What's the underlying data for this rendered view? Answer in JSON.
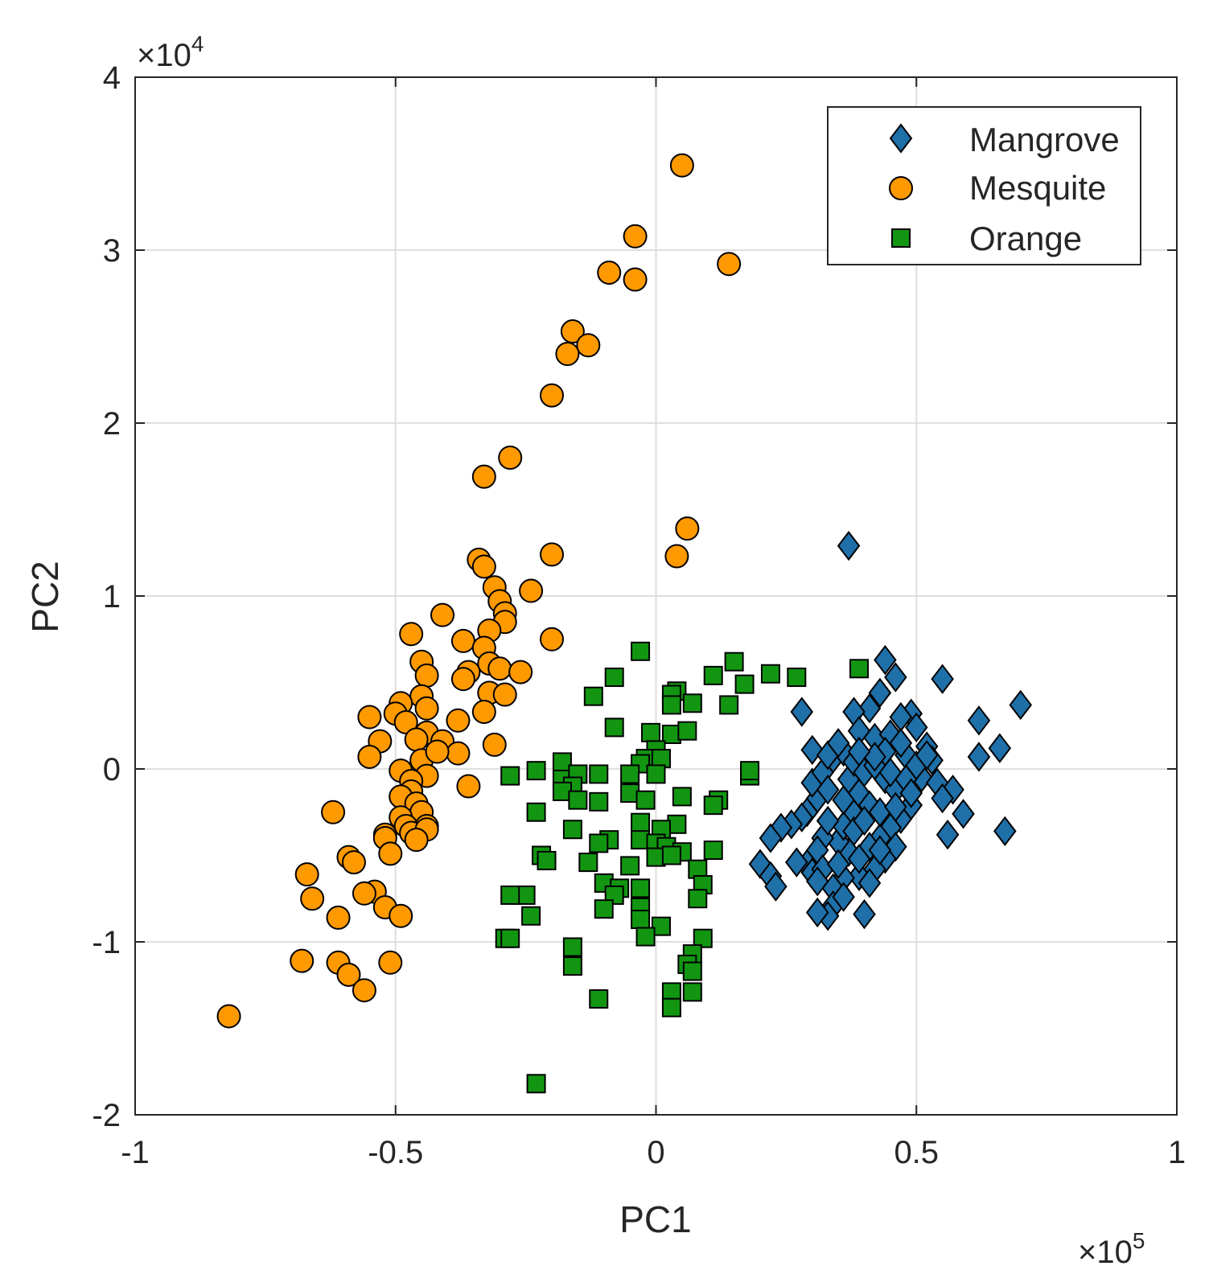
{
  "chart_data": {
    "type": "scatter",
    "title": "",
    "xlabel": "PC1",
    "ylabel": "PC2",
    "x_multiplier_label": "×10",
    "x_multiplier_exponent": "5",
    "y_multiplier_label": "×10",
    "y_multiplier_exponent": "4",
    "xlim": [
      -1,
      1
    ],
    "ylim": [
      -2,
      4
    ],
    "x_ticks": [
      -1,
      -0.5,
      0,
      0.5,
      1
    ],
    "x_tick_labels": [
      "-1",
      "-0.5",
      "0",
      "0.5",
      "1"
    ],
    "y_ticks": [
      -2,
      -1,
      0,
      1,
      2,
      3,
      4
    ],
    "y_tick_labels": [
      "-2",
      "-1",
      "0",
      "1",
      "2",
      "3",
      "4"
    ],
    "grid": true,
    "legend_position": "top-right",
    "series": [
      {
        "name": "Mangrove",
        "marker": "diamond",
        "color": "#1f6fa8",
        "points": [
          [
            0.37,
            1.29
          ],
          [
            0.44,
            0.63
          ],
          [
            0.46,
            0.53
          ],
          [
            0.55,
            0.52
          ],
          [
            0.7,
            0.37
          ],
          [
            0.62,
            0.28
          ],
          [
            0.28,
            0.33
          ],
          [
            0.66,
            0.12
          ],
          [
            0.62,
            0.07
          ],
          [
            0.59,
            -0.26
          ],
          [
            0.67,
            -0.36
          ],
          [
            0.56,
            -0.38
          ],
          [
            0.49,
            0.32
          ],
          [
            0.47,
            0.3
          ],
          [
            0.43,
            0.44
          ],
          [
            0.41,
            0.35
          ],
          [
            0.38,
            0.33
          ],
          [
            0.39,
            0.22
          ],
          [
            0.42,
            0.18
          ],
          [
            0.45,
            0.2
          ],
          [
            0.5,
            0.24
          ],
          [
            0.52,
            0.13
          ],
          [
            0.53,
            0.05
          ],
          [
            0.51,
            -0.05
          ],
          [
            0.54,
            -0.08
          ],
          [
            0.57,
            -0.12
          ],
          [
            0.55,
            -0.17
          ],
          [
            0.49,
            -0.21
          ],
          [
            0.47,
            -0.29
          ],
          [
            0.45,
            -0.34
          ],
          [
            0.43,
            -0.4
          ],
          [
            0.46,
            -0.45
          ],
          [
            0.44,
            -0.52
          ],
          [
            0.42,
            -0.58
          ],
          [
            0.39,
            -0.62
          ],
          [
            0.41,
            -0.66
          ],
          [
            0.36,
            -0.63
          ],
          [
            0.34,
            -0.69
          ],
          [
            0.34,
            -0.79
          ],
          [
            0.33,
            -0.85
          ],
          [
            0.31,
            -0.83
          ],
          [
            0.4,
            -0.84
          ],
          [
            0.37,
            -0.48
          ],
          [
            0.35,
            -0.42
          ],
          [
            0.32,
            -0.4
          ],
          [
            0.31,
            -0.47
          ],
          [
            0.29,
            -0.55
          ],
          [
            0.29,
            -0.25
          ],
          [
            0.31,
            -0.17
          ],
          [
            0.3,
            -0.08
          ],
          [
            0.32,
            -0.02
          ],
          [
            0.34,
            0.06
          ],
          [
            0.36,
            0.1
          ],
          [
            0.37,
            -0.06
          ],
          [
            0.39,
            -0.14
          ],
          [
            0.41,
            -0.21
          ],
          [
            0.38,
            -0.26
          ],
          [
            0.36,
            -0.33
          ],
          [
            0.33,
            -0.3
          ],
          [
            0.3,
            0.11
          ],
          [
            0.33,
            0.08
          ],
          [
            0.35,
            0.15
          ],
          [
            0.38,
            0.04
          ],
          [
            0.4,
            -0.02
          ],
          [
            0.42,
            0.02
          ],
          [
            0.44,
            -0.06
          ],
          [
            0.46,
            -0.12
          ],
          [
            0.48,
            0.08
          ],
          [
            0.5,
            0.02
          ],
          [
            0.47,
            0.15
          ],
          [
            0.44,
            0.1
          ],
          [
            0.42,
            0.07
          ],
          [
            0.39,
            0.1
          ],
          [
            0.36,
            -0.18
          ],
          [
            0.33,
            -0.12
          ],
          [
            0.28,
            -0.28
          ],
          [
            0.26,
            -0.32
          ],
          [
            0.24,
            -0.34
          ],
          [
            0.22,
            -0.4
          ],
          [
            0.2,
            -0.55
          ],
          [
            0.22,
            -0.62
          ],
          [
            0.23,
            -0.68
          ],
          [
            0.27,
            -0.54
          ],
          [
            0.3,
            -0.6
          ],
          [
            0.32,
            -0.58
          ],
          [
            0.35,
            -0.55
          ],
          [
            0.38,
            -0.36
          ],
          [
            0.4,
            -0.3
          ],
          [
            0.43,
            -0.25
          ],
          [
            0.45,
            -0.02
          ],
          [
            0.48,
            -0.06
          ],
          [
            0.52,
            0.08
          ],
          [
            0.49,
            -0.14
          ],
          [
            0.41,
            -0.45
          ],
          [
            0.39,
            -0.52
          ],
          [
            0.36,
            -0.74
          ],
          [
            0.31,
            -0.65
          ],
          [
            0.43,
            -0.47
          ],
          [
            0.46,
            -0.22
          ]
        ]
      },
      {
        "name": "Mesquite",
        "marker": "circle",
        "color": "#ff9900",
        "points": [
          [
            0.05,
            3.49
          ],
          [
            -0.04,
            3.08
          ],
          [
            0.14,
            2.92
          ],
          [
            -0.09,
            2.87
          ],
          [
            -0.04,
            2.83
          ],
          [
            -0.16,
            2.53
          ],
          [
            -0.13,
            2.45
          ],
          [
            -0.17,
            2.4
          ],
          [
            -0.2,
            2.16
          ],
          [
            -0.28,
            1.8
          ],
          [
            -0.33,
            1.69
          ],
          [
            0.06,
            1.39
          ],
          [
            0.04,
            1.23
          ],
          [
            -0.2,
            1.24
          ],
          [
            -0.34,
            1.21
          ],
          [
            -0.33,
            1.17
          ],
          [
            -0.31,
            1.05
          ],
          [
            -0.24,
            1.03
          ],
          [
            -0.3,
            0.97
          ],
          [
            -0.29,
            0.9
          ],
          [
            -0.41,
            0.89
          ],
          [
            -0.29,
            0.85
          ],
          [
            -0.32,
            0.8
          ],
          [
            -0.47,
            0.78
          ],
          [
            -0.2,
            0.75
          ],
          [
            -0.37,
            0.74
          ],
          [
            -0.33,
            0.7
          ],
          [
            -0.45,
            0.62
          ],
          [
            -0.32,
            0.61
          ],
          [
            -0.3,
            0.58
          ],
          [
            -0.26,
            0.56
          ],
          [
            -0.36,
            0.56
          ],
          [
            -0.44,
            0.54
          ],
          [
            -0.37,
            0.52
          ],
          [
            -0.32,
            0.44
          ],
          [
            -0.29,
            0.43
          ],
          [
            -0.45,
            0.42
          ],
          [
            -0.49,
            0.38
          ],
          [
            -0.44,
            0.35
          ],
          [
            -0.5,
            0.32
          ],
          [
            -0.55,
            0.3
          ],
          [
            -0.48,
            0.27
          ],
          [
            -0.38,
            0.28
          ],
          [
            -0.33,
            0.33
          ],
          [
            -0.44,
            0.21
          ],
          [
            -0.41,
            0.16
          ],
          [
            -0.46,
            0.17
          ],
          [
            -0.53,
            0.16
          ],
          [
            -0.31,
            0.14
          ],
          [
            -0.38,
            0.09
          ],
          [
            -0.45,
            0.05
          ],
          [
            -0.55,
            0.07
          ],
          [
            -0.42,
            0.1
          ],
          [
            -0.49,
            -0.01
          ],
          [
            -0.44,
            -0.04
          ],
          [
            -0.47,
            -0.07
          ],
          [
            -0.36,
            -0.1
          ],
          [
            -0.47,
            -0.13
          ],
          [
            -0.49,
            -0.16
          ],
          [
            -0.46,
            -0.2
          ],
          [
            -0.45,
            -0.25
          ],
          [
            -0.49,
            -0.28
          ],
          [
            -0.62,
            -0.25
          ],
          [
            -0.48,
            -0.33
          ],
          [
            -0.44,
            -0.33
          ],
          [
            -0.47,
            -0.37
          ],
          [
            -0.44,
            -0.35
          ],
          [
            -0.52,
            -0.38
          ],
          [
            -0.52,
            -0.4
          ],
          [
            -0.46,
            -0.41
          ],
          [
            -0.51,
            -0.49
          ],
          [
            -0.59,
            -0.51
          ],
          [
            -0.58,
            -0.54
          ],
          [
            -0.67,
            -0.61
          ],
          [
            -0.54,
            -0.71
          ],
          [
            -0.56,
            -0.72
          ],
          [
            -0.66,
            -0.75
          ],
          [
            -0.52,
            -0.8
          ],
          [
            -0.61,
            -0.86
          ],
          [
            -0.49,
            -0.85
          ],
          [
            -0.68,
            -1.11
          ],
          [
            -0.61,
            -1.12
          ],
          [
            -0.51,
            -1.12
          ],
          [
            -0.59,
            -1.19
          ],
          [
            -0.56,
            -1.28
          ],
          [
            -0.82,
            -1.43
          ]
        ]
      },
      {
        "name": "Orange",
        "marker": "square",
        "color": "#129612",
        "points": [
          [
            -0.03,
            0.68
          ],
          [
            0.39,
            0.58
          ],
          [
            0.15,
            0.62
          ],
          [
            0.22,
            0.55
          ],
          [
            0.27,
            0.53
          ],
          [
            0.11,
            0.54
          ],
          [
            0.17,
            0.49
          ],
          [
            -0.08,
            0.53
          ],
          [
            -0.12,
            0.42
          ],
          [
            0.04,
            0.45
          ],
          [
            0.03,
            0.43
          ],
          [
            0.07,
            0.38
          ],
          [
            0.03,
            0.37
          ],
          [
            0.14,
            0.37
          ],
          [
            -0.08,
            0.24
          ],
          [
            -0.01,
            0.21
          ],
          [
            0.03,
            0.2
          ],
          [
            0.06,
            0.22
          ],
          [
            0.0,
            0.11
          ],
          [
            -0.02,
            0.06
          ],
          [
            0.01,
            0.06
          ],
          [
            -0.03,
            0.03
          ],
          [
            -0.18,
            0.04
          ],
          [
            -0.23,
            -0.01
          ],
          [
            -0.28,
            -0.04
          ],
          [
            -0.18,
            -0.06
          ],
          [
            -0.15,
            -0.03
          ],
          [
            -0.11,
            -0.03
          ],
          [
            -0.05,
            -0.03
          ],
          [
            0.0,
            -0.03
          ],
          [
            0.18,
            -0.04
          ],
          [
            0.18,
            -0.01
          ],
          [
            -0.16,
            -0.1
          ],
          [
            -0.18,
            -0.13
          ],
          [
            -0.15,
            -0.18
          ],
          [
            -0.11,
            -0.19
          ],
          [
            -0.05,
            -0.14
          ],
          [
            -0.02,
            -0.18
          ],
          [
            0.05,
            -0.16
          ],
          [
            0.12,
            -0.18
          ],
          [
            0.11,
            -0.21
          ],
          [
            -0.23,
            -0.25
          ],
          [
            -0.16,
            -0.35
          ],
          [
            -0.03,
            -0.31
          ],
          [
            0.04,
            -0.32
          ],
          [
            0.01,
            -0.35
          ],
          [
            -0.09,
            -0.41
          ],
          [
            -0.11,
            -0.43
          ],
          [
            -0.03,
            -0.41
          ],
          [
            0.0,
            -0.43
          ],
          [
            0.02,
            -0.45
          ],
          [
            0.05,
            -0.48
          ],
          [
            0.11,
            -0.47
          ],
          [
            -0.22,
            -0.5
          ],
          [
            -0.21,
            -0.53
          ],
          [
            -0.13,
            -0.54
          ],
          [
            -0.05,
            -0.56
          ],
          [
            0.0,
            -0.51
          ],
          [
            0.03,
            -0.5
          ],
          [
            0.08,
            -0.58
          ],
          [
            -0.1,
            -0.66
          ],
          [
            -0.07,
            -0.69
          ],
          [
            -0.03,
            -0.69
          ],
          [
            0.09,
            -0.67
          ],
          [
            -0.25,
            -0.73
          ],
          [
            -0.28,
            -0.73
          ],
          [
            -0.08,
            -0.73
          ],
          [
            0.08,
            -0.75
          ],
          [
            -0.1,
            -0.81
          ],
          [
            -0.03,
            -0.8
          ],
          [
            -0.24,
            -0.85
          ],
          [
            -0.03,
            -0.87
          ],
          [
            0.01,
            -0.91
          ],
          [
            -0.29,
            -0.98
          ],
          [
            -0.28,
            -0.98
          ],
          [
            -0.16,
            -1.03
          ],
          [
            0.09,
            -0.98
          ],
          [
            -0.02,
            -0.97
          ],
          [
            0.07,
            -1.07
          ],
          [
            0.06,
            -1.13
          ],
          [
            -0.16,
            -1.14
          ],
          [
            0.07,
            -1.17
          ],
          [
            0.03,
            -1.29
          ],
          [
            0.07,
            -1.29
          ],
          [
            -0.11,
            -1.33
          ],
          [
            0.03,
            -1.38
          ],
          [
            -0.23,
            -1.82
          ]
        ]
      }
    ]
  }
}
